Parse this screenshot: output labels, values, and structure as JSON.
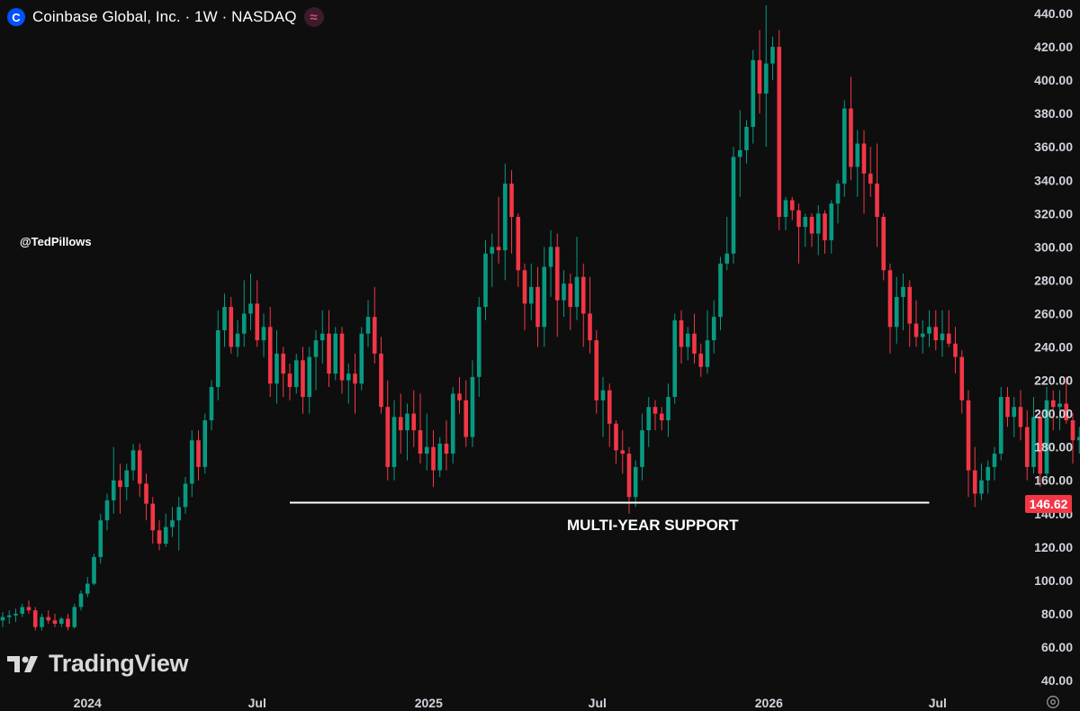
{
  "header": {
    "title": "Coinbase Global, Inc. · 1W · NASDAQ",
    "logo_glyph": "C",
    "indicator_glyph": "≈",
    "accent": "#0052ff"
  },
  "watermark": "@TedPillows",
  "branding": {
    "name": "TradingView"
  },
  "last_price": {
    "label": "146.62",
    "value": 146.62,
    "color": "#f23645"
  },
  "annotation": {
    "label": "MULTI-YEAR SUPPORT",
    "level": 146.6,
    "from": "2024-08-05",
    "to": "2026-06-22"
  },
  "chart_data": {
    "type": "candlestick",
    "title": "Coinbase Global, Inc. · 1W · NASDAQ",
    "interval": "1W",
    "ylim": [
      30,
      445
    ],
    "y_ticks": [
      "440.00",
      "420.00",
      "400.00",
      "380.00",
      "360.00",
      "340.00",
      "320.00",
      "300.00",
      "280.00",
      "260.00",
      "240.00",
      "220.00",
      "200.00",
      "180.00",
      "160.00",
      "140.00",
      "120.00",
      "100.00",
      "80.00",
      "60.00",
      "40.00"
    ],
    "x_ticks": [
      "2024",
      "Jul",
      "2025",
      "Jul",
      "2026",
      "Jul"
    ],
    "x_tick_dates": [
      "2024-01-01",
      "2024-07-01",
      "2025-01-01",
      "2025-07-01",
      "2026-01-01",
      "2026-07-01"
    ],
    "start_date": "2023-10-02",
    "up_color": "#089981",
    "down_color": "#f23645",
    "grid": false,
    "candles": [
      [
        76,
        81,
        72,
        78
      ],
      [
        78,
        82,
        74,
        79
      ],
      [
        79,
        83,
        75,
        80
      ],
      [
        80,
        86,
        78,
        84
      ],
      [
        84,
        88,
        80,
        82
      ],
      [
        82,
        84,
        70,
        72
      ],
      [
        72,
        80,
        70,
        78
      ],
      [
        78,
        82,
        74,
        76
      ],
      [
        76,
        80,
        72,
        74
      ],
      [
        74,
        78,
        72,
        77
      ],
      [
        77,
        80,
        70,
        72
      ],
      [
        72,
        86,
        71,
        84
      ],
      [
        84,
        94,
        82,
        92
      ],
      [
        92,
        102,
        90,
        98
      ],
      [
        98,
        116,
        97,
        114
      ],
      [
        114,
        140,
        110,
        136
      ],
      [
        136,
        152,
        130,
        148
      ],
      [
        148,
        180,
        140,
        160
      ],
      [
        160,
        170,
        140,
        156
      ],
      [
        156,
        170,
        148,
        166
      ],
      [
        166,
        182,
        160,
        178
      ],
      [
        178,
        182,
        150,
        158
      ],
      [
        158,
        164,
        136,
        146
      ],
      [
        146,
        150,
        122,
        130
      ],
      [
        130,
        136,
        118,
        122
      ],
      [
        122,
        140,
        120,
        132
      ],
      [
        132,
        144,
        126,
        136
      ],
      [
        136,
        150,
        118,
        144
      ],
      [
        144,
        162,
        140,
        158
      ],
      [
        158,
        190,
        150,
        184
      ],
      [
        184,
        190,
        160,
        168
      ],
      [
        168,
        200,
        164,
        196
      ],
      [
        196,
        220,
        190,
        216
      ],
      [
        216,
        262,
        208,
        250
      ],
      [
        250,
        272,
        240,
        264
      ],
      [
        264,
        270,
        236,
        240
      ],
      [
        240,
        256,
        234,
        248
      ],
      [
        248,
        280,
        240,
        260
      ],
      [
        260,
        284,
        250,
        266
      ],
      [
        266,
        280,
        240,
        244
      ],
      [
        244,
        260,
        234,
        252
      ],
      [
        252,
        264,
        210,
        218
      ],
      [
        218,
        250,
        206,
        236
      ],
      [
        236,
        240,
        210,
        224
      ],
      [
        224,
        230,
        208,
        216
      ],
      [
        216,
        236,
        212,
        232
      ],
      [
        232,
        240,
        200,
        210
      ],
      [
        210,
        240,
        200,
        234
      ],
      [
        234,
        250,
        214,
        244
      ],
      [
        244,
        262,
        230,
        248
      ],
      [
        248,
        262,
        216,
        224
      ],
      [
        224,
        252,
        220,
        248
      ],
      [
        248,
        252,
        212,
        220
      ],
      [
        220,
        230,
        206,
        224
      ],
      [
        224,
        236,
        200,
        218
      ],
      [
        218,
        252,
        214,
        248
      ],
      [
        248,
        268,
        240,
        258
      ],
      [
        258,
        276,
        230,
        236
      ],
      [
        236,
        246,
        200,
        204
      ],
      [
        204,
        220,
        160,
        168
      ],
      [
        168,
        208,
        160,
        198
      ],
      [
        198,
        212,
        176,
        190
      ],
      [
        190,
        206,
        172,
        200
      ],
      [
        200,
        214,
        180,
        190
      ],
      [
        190,
        212,
        170,
        176
      ],
      [
        176,
        200,
        166,
        180
      ],
      [
        180,
        190,
        156,
        166
      ],
      [
        166,
        186,
        162,
        182
      ],
      [
        182,
        196,
        166,
        176
      ],
      [
        176,
        216,
        170,
        212
      ],
      [
        212,
        222,
        200,
        208
      ],
      [
        208,
        220,
        180,
        186
      ],
      [
        186,
        232,
        180,
        222
      ],
      [
        222,
        270,
        210,
        264
      ],
      [
        264,
        304,
        256,
        296
      ],
      [
        296,
        308,
        276,
        300
      ],
      [
        300,
        330,
        290,
        298
      ],
      [
        298,
        350,
        280,
        338
      ],
      [
        338,
        346,
        296,
        318
      ],
      [
        318,
        320,
        276,
        286
      ],
      [
        286,
        290,
        250,
        266
      ],
      [
        266,
        290,
        256,
        276
      ],
      [
        276,
        288,
        240,
        252
      ],
      [
        252,
        300,
        240,
        288
      ],
      [
        288,
        310,
        270,
        300
      ],
      [
        300,
        308,
        246,
        268
      ],
      [
        268,
        286,
        258,
        278
      ],
      [
        278,
        284,
        250,
        264
      ],
      [
        264,
        306,
        256,
        282
      ],
      [
        282,
        290,
        240,
        260
      ],
      [
        260,
        282,
        236,
        244
      ],
      [
        244,
        250,
        200,
        208
      ],
      [
        208,
        222,
        186,
        214
      ],
      [
        214,
        218,
        180,
        194
      ],
      [
        194,
        196,
        170,
        178
      ],
      [
        178,
        190,
        164,
        176
      ],
      [
        176,
        180,
        140,
        150
      ],
      [
        150,
        172,
        144,
        168
      ],
      [
        168,
        200,
        160,
        190
      ],
      [
        190,
        210,
        180,
        204
      ],
      [
        204,
        208,
        190,
        200
      ],
      [
        200,
        204,
        190,
        196
      ],
      [
        196,
        218,
        186,
        210
      ],
      [
        210,
        260,
        206,
        256
      ],
      [
        256,
        262,
        230,
        240
      ],
      [
        240,
        252,
        232,
        248
      ],
      [
        248,
        260,
        230,
        236
      ],
      [
        236,
        242,
        222,
        228
      ],
      [
        228,
        262,
        224,
        244
      ],
      [
        244,
        268,
        236,
        258
      ],
      [
        258,
        294,
        250,
        290
      ],
      [
        290,
        318,
        286,
        296
      ],
      [
        296,
        360,
        290,
        354
      ],
      [
        354,
        382,
        330,
        358
      ],
      [
        358,
        376,
        350,
        372
      ],
      [
        372,
        418,
        362,
        412
      ],
      [
        412,
        430,
        380,
        392
      ],
      [
        392,
        445,
        360,
        410
      ],
      [
        410,
        426,
        400,
        420
      ],
      [
        420,
        430,
        310,
        318
      ],
      [
        318,
        330,
        310,
        328
      ],
      [
        328,
        330,
        316,
        322
      ],
      [
        322,
        326,
        290,
        312
      ],
      [
        312,
        320,
        300,
        318
      ],
      [
        318,
        320,
        300,
        308
      ],
      [
        308,
        325,
        295,
        320
      ],
      [
        320,
        322,
        296,
        304
      ],
      [
        304,
        328,
        296,
        326
      ],
      [
        326,
        340,
        314,
        338
      ],
      [
        338,
        388,
        330,
        383
      ],
      [
        383,
        402,
        340,
        348
      ],
      [
        348,
        370,
        330,
        362
      ],
      [
        362,
        370,
        320,
        344
      ],
      [
        344,
        360,
        330,
        338
      ],
      [
        338,
        362,
        300,
        318
      ],
      [
        318,
        320,
        280,
        286
      ],
      [
        286,
        290,
        236,
        252
      ],
      [
        252,
        282,
        242,
        270
      ],
      [
        270,
        284,
        250,
        276
      ],
      [
        276,
        280,
        240,
        254
      ],
      [
        254,
        268,
        240,
        246
      ],
      [
        246,
        256,
        236,
        248
      ],
      [
        248,
        262,
        240,
        252
      ],
      [
        252,
        262,
        238,
        244
      ],
      [
        244,
        262,
        234,
        248
      ],
      [
        248,
        262,
        240,
        242
      ],
      [
        242,
        252,
        224,
        234
      ],
      [
        234,
        238,
        200,
        208
      ],
      [
        208,
        214,
        150,
        166
      ],
      [
        166,
        180,
        144,
        152
      ],
      [
        152,
        170,
        148,
        160
      ],
      [
        160,
        172,
        152,
        168
      ],
      [
        168,
        180,
        160,
        176
      ],
      [
        176,
        216,
        172,
        210
      ],
      [
        210,
        216,
        192,
        198
      ],
      [
        198,
        210,
        186,
        204
      ],
      [
        204,
        214,
        184,
        192
      ],
      [
        192,
        202,
        160,
        168
      ],
      [
        168,
        210,
        164,
        198
      ],
      [
        198,
        200,
        156,
        164
      ],
      [
        164,
        216,
        160,
        208
      ],
      [
        208,
        214,
        190,
        204
      ],
      [
        204,
        214,
        190,
        206
      ],
      [
        206,
        222,
        194,
        196
      ],
      [
        196,
        200,
        170,
        184
      ],
      [
        184,
        192,
        176,
        186
      ],
      [
        186,
        188,
        164,
        174
      ],
      [
        174,
        178,
        152,
        160
      ],
      [
        160,
        172,
        150,
        168
      ],
      [
        168,
        178,
        158,
        172
      ],
      [
        172,
        176,
        142,
        146.62
      ]
    ]
  }
}
